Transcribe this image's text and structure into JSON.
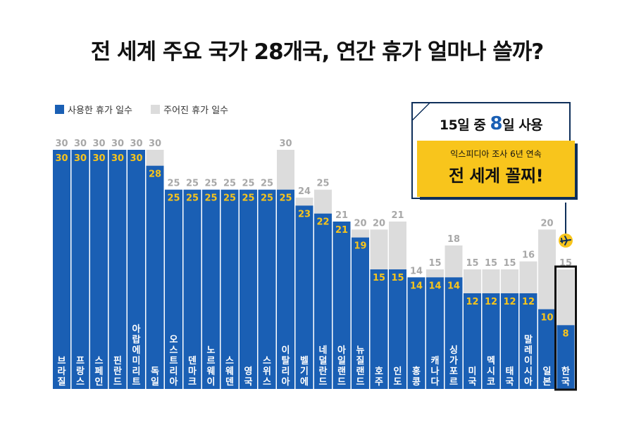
{
  "title": "전 세계 주요 국가 28개국, 연간 휴가 얼마나 쓸까?",
  "legend": {
    "used": "사용한 휴가 일수",
    "given": "주어진 휴가 일수"
  },
  "colors": {
    "used": "#1a5fb4",
    "given": "#dcdcdc",
    "used_label": "#f8c51c",
    "given_label": "#a8a8a8",
    "highlight_border": "#111111",
    "accent_yellow": "#f8c51c",
    "dark_navy": "#0e2f5a"
  },
  "callout": {
    "head_prefix": "15",
    "head_mid": "일 중 ",
    "head_big": "8",
    "head_suffix": "일 사용",
    "sub": "익스피디아 조사 6년 연속",
    "main": "전 세계 꼴찌!",
    "icon": "airplane-icon"
  },
  "chart_data": {
    "type": "bar",
    "title": "전 세계 주요 국가 28개국, 연간 휴가 얼마나 쓸까?",
    "categories": [
      "브라질",
      "프랑스",
      "스페인",
      "핀란드",
      "아랍에미리트",
      "독일",
      "오스트리아",
      "덴마크",
      "노르웨이",
      "스웨덴",
      "영국",
      "스위스",
      "이탈리아",
      "벨기에",
      "네덜란드",
      "아일랜드",
      "뉴질랜드",
      "호주",
      "인도",
      "홍콩",
      "캐나다",
      "싱가포르",
      "미국",
      "멕시코",
      "태국",
      "말레이시아",
      "일본",
      "한국"
    ],
    "series": [
      {
        "name": "주어진 휴가 일수",
        "values": [
          30,
          30,
          30,
          30,
          30,
          30,
          25,
          25,
          25,
          25,
          25,
          25,
          30,
          24,
          25,
          21,
          20,
          20,
          21,
          14,
          15,
          18,
          15,
          15,
          15,
          16,
          20,
          15
        ]
      },
      {
        "name": "사용한 휴가 일수",
        "values": [
          30,
          30,
          30,
          30,
          30,
          28,
          25,
          25,
          25,
          25,
          25,
          25,
          25,
          23,
          22,
          21,
          19,
          15,
          15,
          14,
          14,
          14,
          12,
          12,
          12,
          12,
          10,
          8
        ]
      }
    ],
    "ylim": [
      0,
      30
    ],
    "highlight": "한국",
    "legend_position": "top-left"
  }
}
